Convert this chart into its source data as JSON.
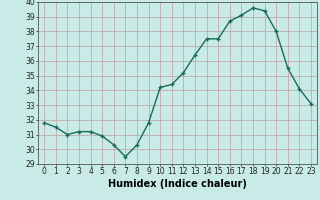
{
  "x": [
    0,
    1,
    2,
    3,
    4,
    5,
    6,
    7,
    8,
    9,
    10,
    11,
    12,
    13,
    14,
    15,
    16,
    17,
    18,
    19,
    20,
    21,
    22,
    23
  ],
  "y": [
    31.8,
    31.5,
    31.0,
    31.2,
    31.2,
    30.9,
    30.3,
    29.5,
    30.3,
    31.8,
    34.2,
    34.4,
    35.2,
    36.4,
    37.5,
    37.5,
    38.7,
    39.1,
    39.6,
    39.4,
    38.0,
    35.5,
    34.1,
    33.1
  ],
  "line_color": "#1a6b5a",
  "marker": "+",
  "marker_color": "#1a6b5a",
  "bg_color": "#c8ebe8",
  "grid_color": "#c0a0a0",
  "xlabel": "Humidex (Indice chaleur)",
  "ylim": [
    29,
    40
  ],
  "xlim": [
    -0.5,
    23.5
  ],
  "yticks": [
    29,
    30,
    31,
    32,
    33,
    34,
    35,
    36,
    37,
    38,
    39,
    40
  ],
  "xticks": [
    0,
    1,
    2,
    3,
    4,
    5,
    6,
    7,
    8,
    9,
    10,
    11,
    12,
    13,
    14,
    15,
    16,
    17,
    18,
    19,
    20,
    21,
    22,
    23
  ],
  "tick_label_fontsize": 5.5,
  "xlabel_fontsize": 7.0,
  "line_width": 1.0,
  "marker_size": 3.5
}
